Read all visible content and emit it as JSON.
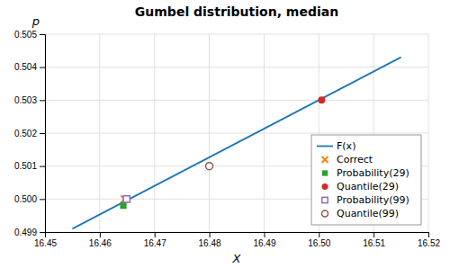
{
  "chart_data": {
    "type": "scatter",
    "title": "Gumbel distribution, median",
    "xlabel": "X",
    "ylabel": "p",
    "xlim": [
      16.45,
      16.52
    ],
    "ylim": [
      0.499,
      0.505
    ],
    "xticks": [
      16.45,
      16.46,
      16.47,
      16.48,
      16.49,
      {
        "value": 16.5,
        "label": "16.50"
      },
      16.51,
      16.52
    ],
    "yticks": [
      0.499,
      {
        "value": 0.5,
        "label": "0.500"
      },
      0.501,
      0.502,
      0.503,
      0.504,
      0.505
    ],
    "grid": true,
    "legend": "lower right",
    "series": [
      {
        "name": "F(x)",
        "type": "line",
        "line_style": "solid",
        "x": [
          16.455,
          16.515
        ],
        "values": [
          0.4991,
          0.5043
        ]
      },
      {
        "name": "Correct",
        "type": "scatter",
        "marker": "x",
        "x": [
          16.4645
        ],
        "values": [
          0.5
        ]
      },
      {
        "name": "Probability(29)",
        "type": "scatter",
        "marker": "square",
        "x": [
          16.4643
        ],
        "values": [
          0.4998
        ]
      },
      {
        "name": "Quantile(29)",
        "type": "scatter",
        "marker": "circle",
        "x": [
          16.5005
        ],
        "values": [
          0.503
        ]
      },
      {
        "name": "Probability(99)",
        "type": "scatter",
        "marker": "open-square",
        "x": [
          16.4649
        ],
        "values": [
          0.5
        ]
      },
      {
        "name": "Quantile(99)",
        "type": "scatter",
        "marker": "open-circle",
        "x": [
          16.48
        ],
        "values": [
          0.501
        ]
      }
    ]
  }
}
